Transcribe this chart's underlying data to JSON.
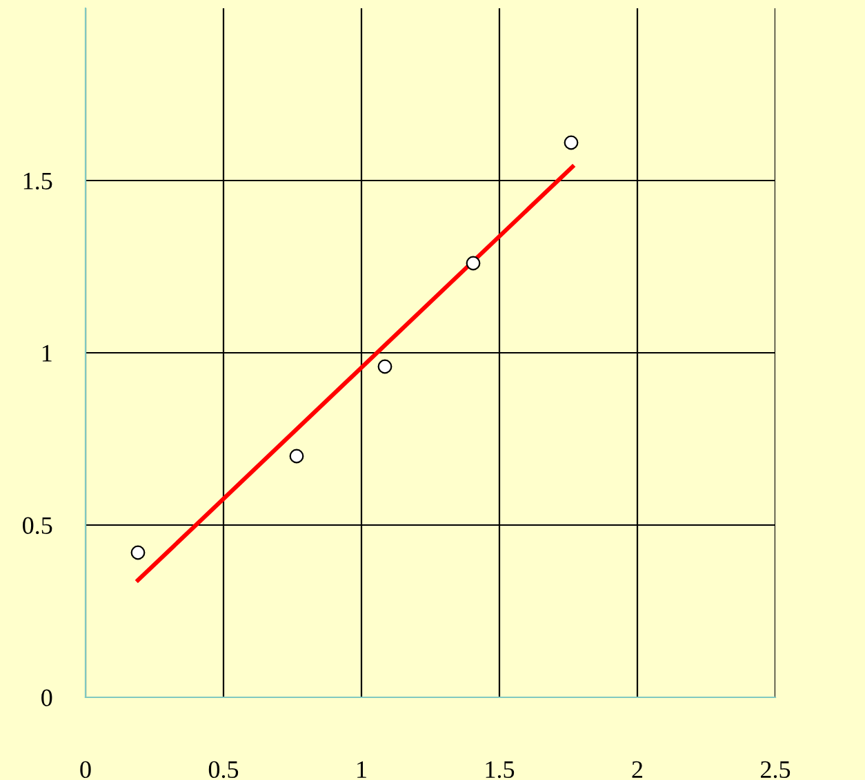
{
  "chart_data": {
    "type": "scatter",
    "series": [
      {
        "color": "#ffffff",
        "marker": "circle",
        "x": [
          0.19,
          0.765,
          1.085,
          1.405,
          1.76
        ],
        "values": [
          0.42,
          0.7,
          0.96,
          1.26,
          1.61
        ]
      },
      {
        "type": "line",
        "color": "#ff0000",
        "marker": "none",
        "x": [
          0.19,
          1.765
        ],
        "values": [
          0.34,
          1.54
        ]
      }
    ],
    "xlim": [
      0,
      2.5
    ],
    "ylim": [
      0,
      2
    ],
    "xticks": [
      0,
      0.5,
      1,
      1.5,
      2,
      2.5
    ],
    "yticks": [
      0,
      0.5,
      1,
      1.5
    ],
    "grid": true
  }
}
